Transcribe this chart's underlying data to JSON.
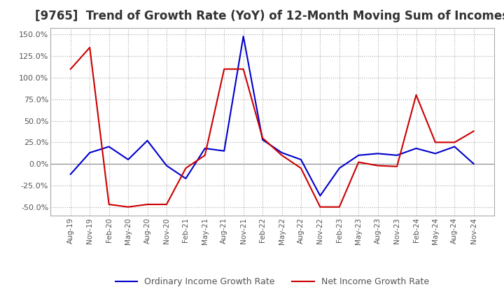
{
  "title": "[9765]  Trend of Growth Rate (YoY) of 12-Month Moving Sum of Incomes",
  "title_fontsize": 12,
  "ylim": [
    -60,
    158
  ],
  "yticks": [
    -50,
    -25,
    0,
    25,
    50,
    75,
    100,
    125,
    150
  ],
  "ytick_labels": [
    "-50.0%",
    "-25.0%",
    "0.0%",
    "25.0%",
    "50.0%",
    "75.0%",
    "100.0%",
    "125.0%",
    "150.0%"
  ],
  "x_labels": [
    "Aug-19",
    "Nov-19",
    "Feb-20",
    "May-20",
    "Aug-20",
    "Nov-20",
    "Feb-21",
    "May-21",
    "Aug-21",
    "Nov-21",
    "Feb-22",
    "May-22",
    "Aug-22",
    "Nov-22",
    "Feb-23",
    "May-23",
    "Aug-23",
    "Nov-23",
    "Feb-24",
    "May-24",
    "Aug-24",
    "Nov-24"
  ],
  "ordinary_income": [
    -12,
    13,
    20,
    5,
    27,
    -2,
    -17,
    18,
    15,
    148,
    28,
    13,
    5,
    -37,
    -5,
    10,
    12,
    10,
    18,
    12,
    20,
    0
  ],
  "net_income": [
    110,
    135,
    -47,
    -50,
    -47,
    -47,
    -5,
    10,
    110,
    110,
    30,
    10,
    -5,
    -50,
    -50,
    2,
    -2,
    -3,
    80,
    25,
    25,
    38
  ],
  "ordinary_color": "#0000cc",
  "net_color": "#cc0000",
  "line_width": 1.5,
  "background_color": "#ffffff",
  "grid_color": "#aaaaaa",
  "legend_ordinary": "Ordinary Income Growth Rate",
  "legend_net": "Net Income Growth Rate"
}
